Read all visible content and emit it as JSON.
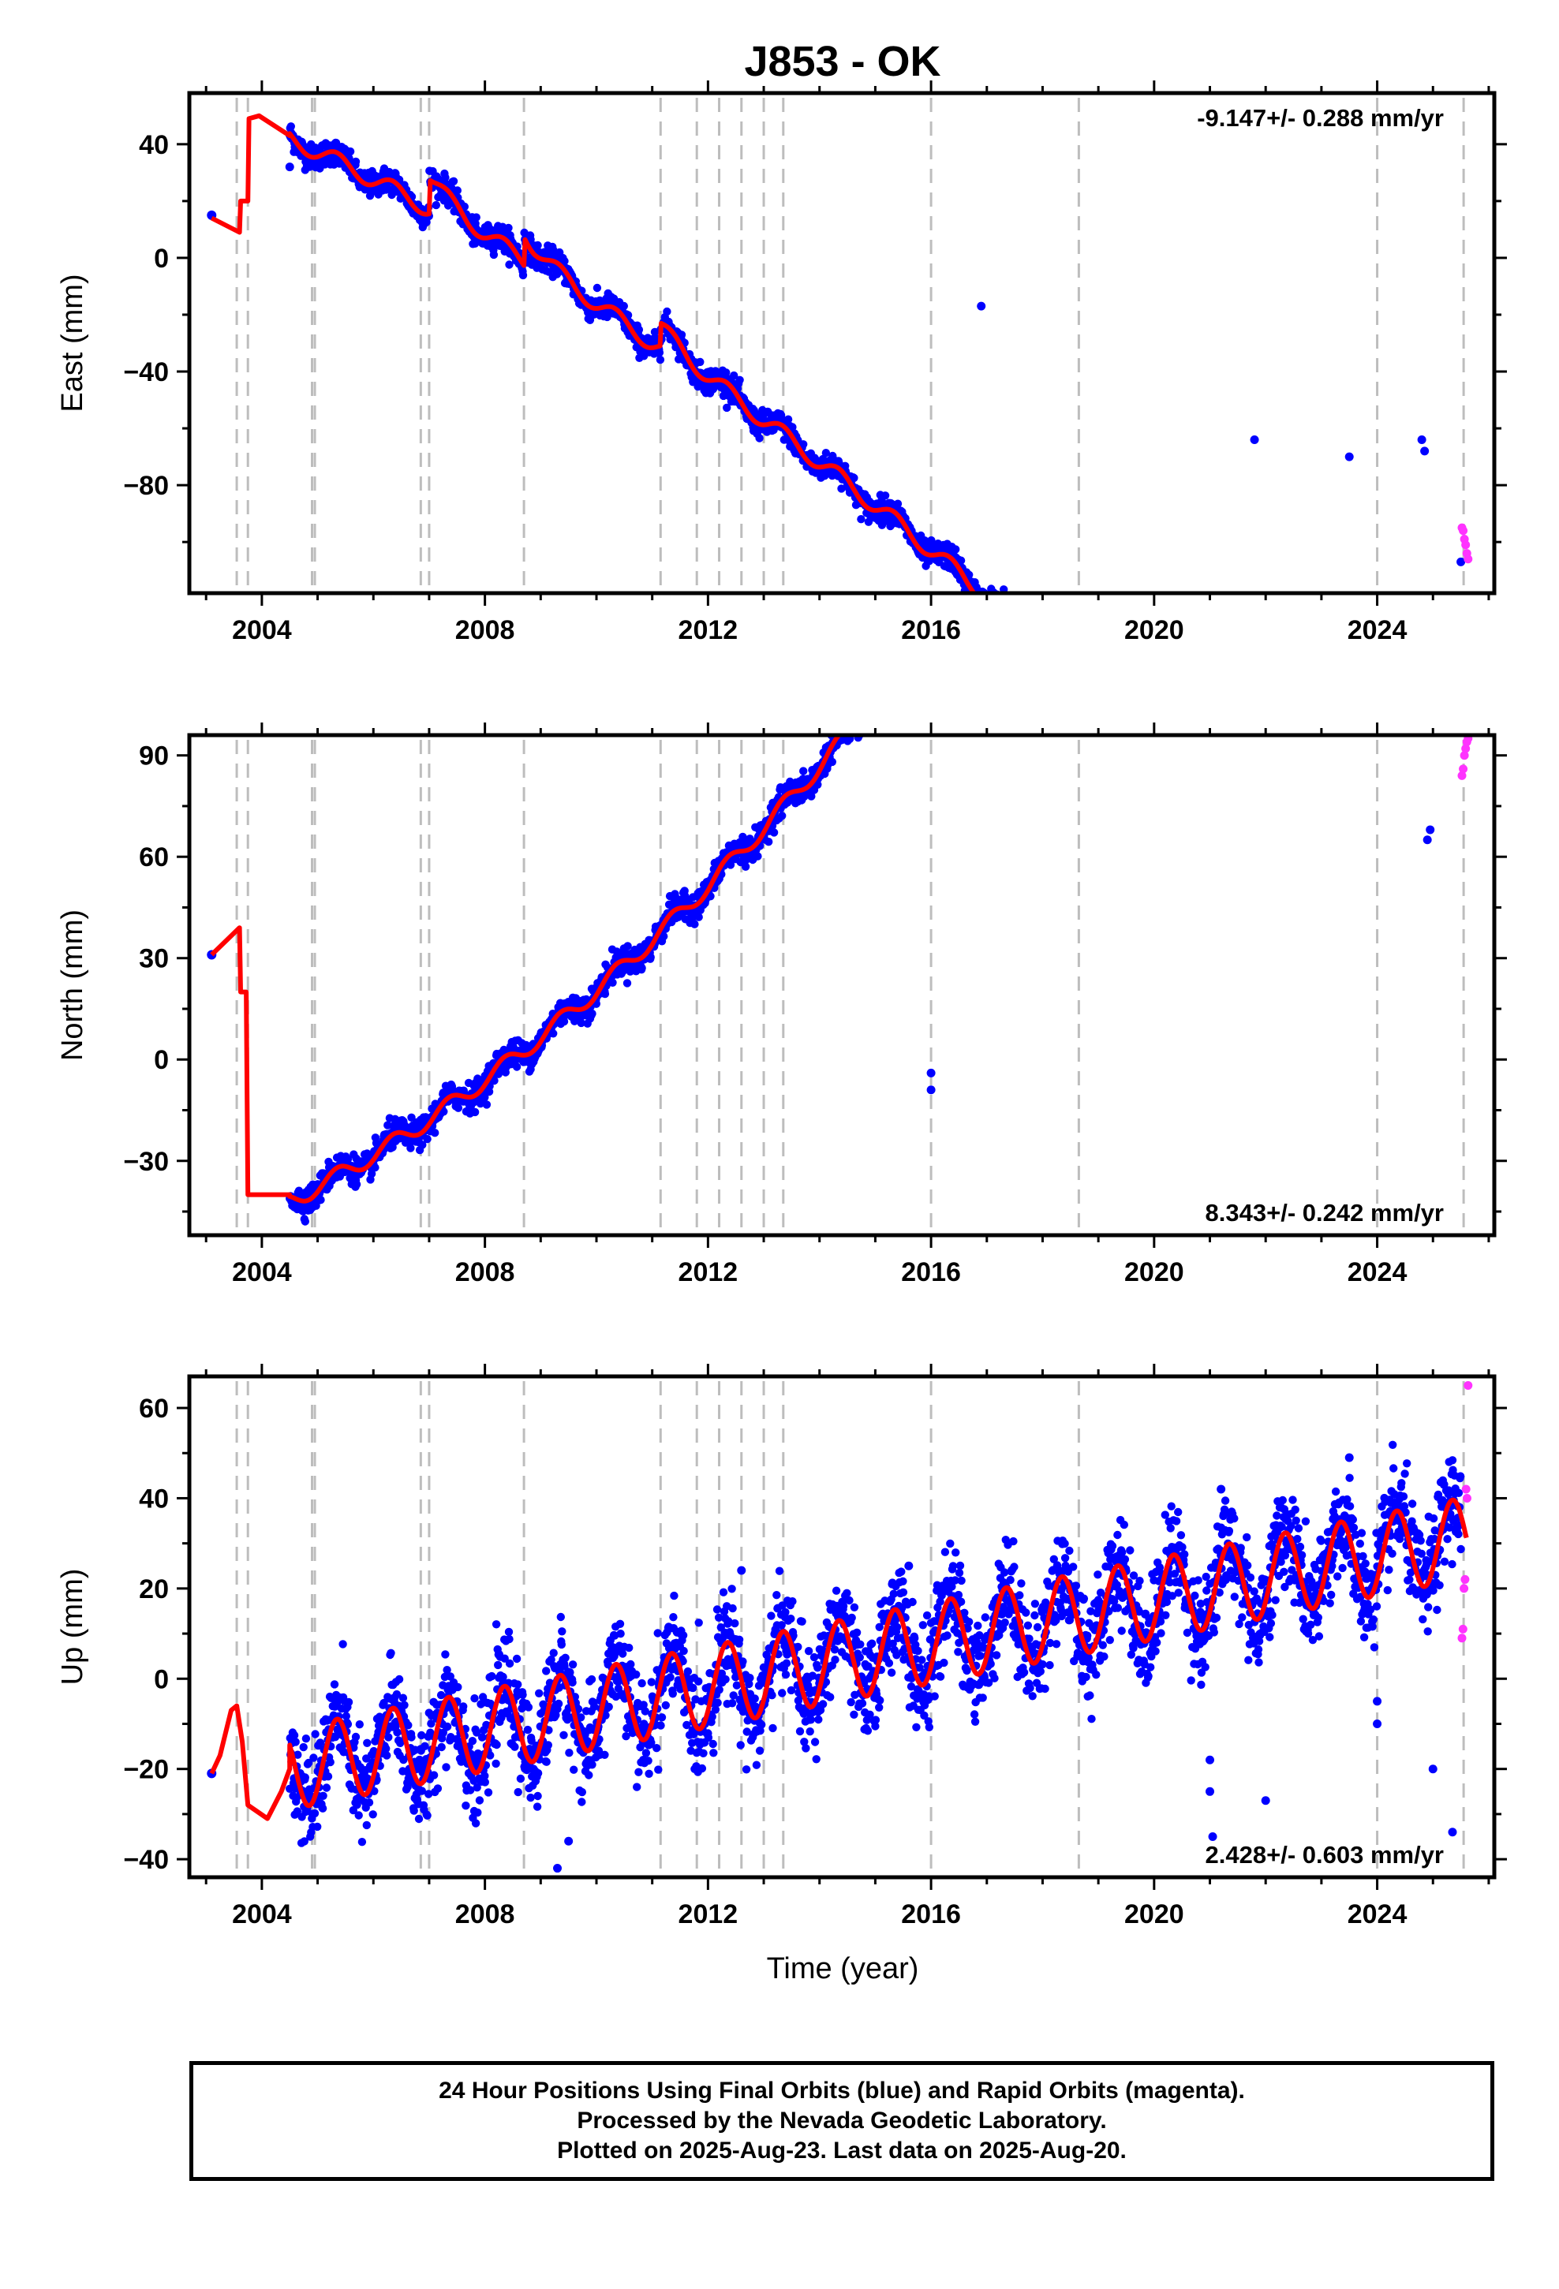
{
  "title": "J853 - OK",
  "colors": {
    "final_orbits": "#0000ff",
    "rapid_orbits": "#ff33ff",
    "model": "#ff0000",
    "event_lines": "#bdbdbd",
    "frame": "#000000"
  },
  "chart_data": [
    {
      "type": "scatter",
      "component": "East",
      "ylabel": "East (mm)",
      "rate_text": "-9.147+/- 0.288 mm/yr",
      "rate_position": "top-right",
      "xlim": [
        2002.7,
        2026.1
      ],
      "ylim": [
        -118,
        58
      ],
      "xticks": [
        2004,
        2008,
        2012,
        2016,
        2020,
        2024
      ],
      "xtick_labels": [
        "2004",
        "2008",
        "2012",
        "2016",
        "2020",
        "2024"
      ],
      "yticks": [
        40,
        0,
        -40,
        -80
      ],
      "ytick_labels": [
        "40",
        "0",
        "−40",
        "−80"
      ],
      "vlines": [
        2003.55,
        2003.75,
        2004.9,
        2004.95,
        2006.85,
        2007.0,
        2008.7,
        2011.15,
        2011.8,
        2012.2,
        2012.6,
        2013.0,
        2013.35,
        2016.0,
        2018.65,
        2024.0,
        2025.55
      ],
      "linear_fit": {
        "x0": 2004.5,
        "y0": 42,
        "slope": -9.147
      },
      "curvature": -0.3,
      "annual_amplitude": 3.0,
      "noise": 2.2,
      "data_start": 2004.5,
      "data_end": 2025.5,
      "rapid_start": 2025.52,
      "rapid_end": 2025.63,
      "offsets": [
        {
          "at": 2007.0,
          "jump": 12
        },
        {
          "at": 2008.7,
          "jump": 10
        },
        {
          "at": 2011.15,
          "jump": 8
        }
      ],
      "early_points": [
        {
          "x": 2003.1,
          "y": 15
        }
      ],
      "early_model": [
        [
          2003.1,
          14
        ],
        [
          2003.6,
          9
        ],
        [
          2003.62,
          20
        ],
        [
          2003.75,
          20
        ],
        [
          2003.77,
          49
        ],
        [
          2003.95,
          50
        ],
        [
          2004.5,
          43
        ]
      ],
      "outliers": [
        [
          2024.8,
          -64
        ],
        [
          2024.85,
          -68
        ],
        [
          2023.5,
          -70
        ],
        [
          2025.5,
          -107
        ],
        [
          2016.9,
          -17
        ],
        [
          2004.5,
          32
        ],
        [
          2021.8,
          -64
        ]
      ],
      "rapid_values": [
        -95,
        -96,
        -99,
        -101,
        -104,
        -106
      ]
    },
    {
      "type": "scatter",
      "component": "North",
      "ylabel": "North (mm)",
      "rate_text": "8.343+/- 0.242 mm/yr",
      "rate_position": "bottom-right",
      "xlim": [
        2002.7,
        2026.1
      ],
      "ylim": [
        -52,
        96
      ],
      "xticks": [
        2004,
        2008,
        2012,
        2016,
        2020,
        2024
      ],
      "xtick_labels": [
        "2004",
        "2008",
        "2012",
        "2016",
        "2020",
        "2024"
      ],
      "yticks": [
        90,
        60,
        30,
        0,
        -30
      ],
      "ytick_labels": [
        "90",
        "60",
        "30",
        "0",
        "−30"
      ],
      "vlines": [
        2003.55,
        2003.75,
        2004.9,
        2004.95,
        2006.85,
        2007.0,
        2008.7,
        2011.15,
        2011.8,
        2012.2,
        2012.6,
        2013.0,
        2013.35,
        2016.0,
        2018.65,
        2024.0,
        2025.55
      ],
      "linear_fit": {
        "x0": 2004.5,
        "y0": -42,
        "slope": 8.343
      },
      "curvature": 0.55,
      "annual_amplitude": 2.5,
      "noise": 2.0,
      "data_start": 2004.5,
      "data_end": 2025.5,
      "rapid_start": 2025.52,
      "rapid_end": 2025.63,
      "offsets": [],
      "early_points": [
        {
          "x": 2003.1,
          "y": 31
        }
      ],
      "early_model": [
        [
          2003.1,
          31
        ],
        [
          2003.6,
          39
        ],
        [
          2003.62,
          20
        ],
        [
          2003.72,
          20
        ],
        [
          2003.75,
          -40
        ],
        [
          2004.5,
          -40
        ]
      ],
      "outliers": [
        [
          2016.0,
          -9
        ],
        [
          2016.0,
          -4
        ],
        [
          2024.9,
          65
        ],
        [
          2024.95,
          68
        ]
      ],
      "rapid_values": [
        84,
        86,
        90,
        92,
        94,
        95
      ]
    },
    {
      "type": "scatter",
      "component": "Up",
      "ylabel": "Up (mm)",
      "rate_text": "2.428+/- 0.603 mm/yr",
      "rate_position": "bottom-right",
      "xlim": [
        2002.7,
        2026.1
      ],
      "ylim": [
        -44,
        67
      ],
      "xticks": [
        2004,
        2008,
        2012,
        2016,
        2020,
        2024
      ],
      "xtick_labels": [
        "2004",
        "2008",
        "2012",
        "2016",
        "2020",
        "2024"
      ],
      "yticks": [
        60,
        40,
        20,
        0,
        -20,
        -40
      ],
      "ytick_labels": [
        "60",
        "40",
        "20",
        "0",
        "−20",
        "−40"
      ],
      "vlines": [
        2003.55,
        2003.75,
        2004.9,
        2004.95,
        2006.85,
        2007.0,
        2008.7,
        2011.15,
        2011.8,
        2012.2,
        2012.6,
        2013.0,
        2013.35,
        2016.0,
        2018.65,
        2024.0,
        2025.55
      ],
      "linear_fit": {
        "x0": 2004.5,
        "y0": -20,
        "slope": 2.428
      },
      "curvature": 0.0,
      "annual_amplitude": 9.0,
      "noise": 5.5,
      "data_start": 2004.5,
      "data_end": 2025.5,
      "rapid_start": 2025.52,
      "rapid_end": 2025.63,
      "offsets": [],
      "early_points": [
        {
          "x": 2003.1,
          "y": -21
        }
      ],
      "early_model": [
        [
          2003.1,
          -21
        ],
        [
          2003.25,
          -17
        ],
        [
          2003.45,
          -7
        ],
        [
          2003.55,
          -6
        ],
        [
          2003.65,
          -14
        ],
        [
          2003.75,
          -28
        ],
        [
          2004.1,
          -31
        ],
        [
          2004.35,
          -25
        ],
        [
          2004.5,
          -20
        ]
      ],
      "outliers": [
        [
          2009.3,
          -42
        ],
        [
          2021.0,
          -18
        ],
        [
          2021.0,
          -25
        ],
        [
          2021.05,
          -35
        ],
        [
          2022.0,
          -27
        ],
        [
          2024.0,
          -10
        ],
        [
          2024.0,
          -5
        ],
        [
          2025.0,
          -20
        ],
        [
          2025.35,
          -34
        ],
        [
          2012.6,
          24
        ],
        [
          2015.6,
          25
        ],
        [
          2021.2,
          42
        ],
        [
          2023.5,
          49
        ],
        [
          2009.5,
          -36
        ]
      ],
      "rapid_values": [
        9,
        11,
        20,
        22,
        42,
        40,
        65
      ]
    }
  ],
  "xlabel": "Time (year)",
  "caption": {
    "line1": "24 Hour Positions Using Final Orbits (blue) and Rapid Orbits (magenta).",
    "line2": "Processed by the Nevada Geodetic Laboratory.",
    "line3": "Plotted on 2025-Aug-23. Last data on 2025-Aug-20."
  }
}
